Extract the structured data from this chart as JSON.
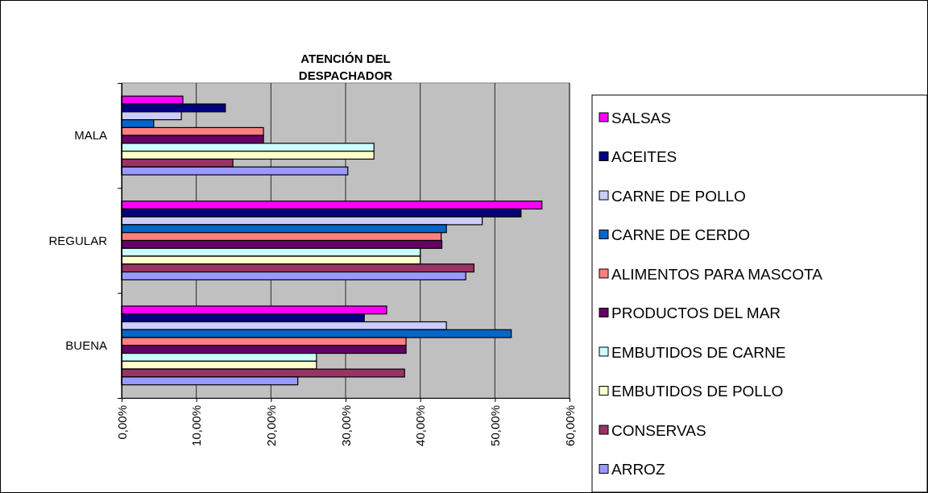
{
  "chart_data": {
    "type": "bar",
    "orientation": "horizontal",
    "title": "ATENCIÓN DEL DESPACHADOR",
    "categories": [
      "MALA",
      "REGULAR",
      "BUENA"
    ],
    "series": [
      {
        "name": "SALSAS",
        "color": "#ff00ff",
        "values": [
          8.2,
          56.3,
          35.5
        ]
      },
      {
        "name": "ACEITES",
        "color": "#000080",
        "values": [
          13.9,
          53.5,
          32.5
        ]
      },
      {
        "name": "CARNE DE POLLO",
        "color": "#ccccff",
        "values": [
          8.0,
          48.3,
          43.5
        ]
      },
      {
        "name": "CARNE DE CERDO",
        "color": "#0066cc",
        "values": [
          4.3,
          43.5,
          52.2
        ]
      },
      {
        "name": "ALIMENTOS PARA MASCOTA",
        "color": "#ff8080",
        "values": [
          19.0,
          42.8,
          38.1
        ]
      },
      {
        "name": "PRODUCTOS DEL MAR",
        "color": "#660066",
        "values": [
          19.0,
          42.9,
          38.1
        ]
      },
      {
        "name": "EMBUTIDOS DE CARNE",
        "color": "#ccffff",
        "values": [
          33.8,
          40.0,
          26.1
        ]
      },
      {
        "name": "EMBUTIDOS DE POLLO",
        "color": "#ffffcc",
        "values": [
          33.8,
          40.0,
          26.1
        ]
      },
      {
        "name": "CONSERVAS",
        "color": "#993366",
        "values": [
          14.9,
          47.2,
          37.9
        ]
      },
      {
        "name": "ARROZ",
        "color": "#9999ff",
        "values": [
          30.3,
          46.1,
          23.6
        ]
      }
    ],
    "xlim": [
      0,
      60
    ],
    "xticks": [
      {
        "value": 0,
        "label": "0,00%"
      },
      {
        "value": 10,
        "label": "10,00%"
      },
      {
        "value": 20,
        "label": "20,00%"
      },
      {
        "value": 30,
        "label": "30,00%"
      },
      {
        "value": 40,
        "label": "40,00%"
      },
      {
        "value": 50,
        "label": "50,00%"
      },
      {
        "value": 60,
        "label": "60,00%"
      }
    ],
    "grid": "x",
    "legend": "right"
  }
}
